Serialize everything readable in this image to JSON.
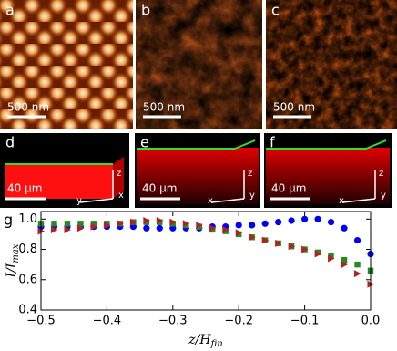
{
  "panels": [
    {
      "label": "a",
      "scale": "500 nm"
    },
    {
      "label": "b",
      "scale": "500 nm"
    },
    {
      "label": "c",
      "scale": "500 nm"
    },
    {
      "label": "d",
      "scale": "40 μm",
      "axes": [
        "z",
        "x",
        "y"
      ]
    },
    {
      "label": "e",
      "scale": "40 μm",
      "axes": [
        "z",
        "y",
        "x"
      ]
    },
    {
      "label": "f",
      "scale": "40 μm",
      "axes": [
        "z",
        "y",
        "x"
      ]
    }
  ],
  "chart_data": {
    "type": "scatter",
    "label": "g",
    "xlabel": {
      "text": "z/H",
      "sub": "fin"
    },
    "ylabel": {
      "text": "I/I",
      "sub": "max"
    },
    "x": [
      -0.5,
      -0.48,
      -0.46,
      -0.44,
      -0.42,
      -0.4,
      -0.38,
      -0.36,
      -0.34,
      -0.32,
      -0.3,
      -0.28,
      -0.26,
      -0.24,
      -0.22,
      -0.2,
      -0.18,
      -0.16,
      -0.14,
      -0.12,
      -0.1,
      -0.08,
      -0.06,
      -0.04,
      -0.02,
      0
    ],
    "series": [
      {
        "color": "#0000ff",
        "marker": "circle",
        "values": [
          0.95,
          0.95,
          0.95,
          0.95,
          0.95,
          0.95,
          0.95,
          0.95,
          0.94,
          0.94,
          0.94,
          0.94,
          0.94,
          0.95,
          0.95,
          0.96,
          0.96,
          0.97,
          0.98,
          0.99,
          1.0,
          1.0,
          0.98,
          0.94,
          0.86,
          0.77
        ]
      },
      {
        "color": "#228b22",
        "marker": "square",
        "values": [
          0.97,
          0.97,
          0.97,
          0.97,
          0.97,
          0.97,
          0.97,
          0.98,
          0.98,
          0.98,
          0.97,
          0.96,
          0.95,
          0.93,
          0.92,
          0.9,
          0.88,
          0.86,
          0.84,
          0.82,
          0.8,
          0.78,
          0.76,
          0.73,
          0.7,
          0.66
        ]
      },
      {
        "color": "#b22222",
        "marker": "triangle",
        "values": [
          0.92,
          0.93,
          0.93,
          0.94,
          0.95,
          0.96,
          0.97,
          0.98,
          0.99,
          0.99,
          0.98,
          0.97,
          0.96,
          0.94,
          0.93,
          0.91,
          0.88,
          0.86,
          0.84,
          0.82,
          0.8,
          0.77,
          0.74,
          0.7,
          0.64,
          0.57
        ]
      }
    ],
    "xlim": [
      -0.5,
      0
    ],
    "ylim": [
      0.4,
      1.05
    ],
    "xticks": [
      {
        "value": -0.5,
        "label": "−0.5"
      },
      {
        "value": -0.4,
        "label": "−0.4"
      },
      {
        "value": -0.3,
        "label": "−0.3"
      },
      {
        "value": -0.2,
        "label": "−0.2"
      },
      {
        "value": -0.1,
        "label": "−0.1"
      },
      {
        "value": 0,
        "label": "0.0"
      }
    ],
    "yticks": [
      0.4,
      0.6,
      0.8,
      {
        "value": 1,
        "label": "1.0"
      }
    ]
  }
}
